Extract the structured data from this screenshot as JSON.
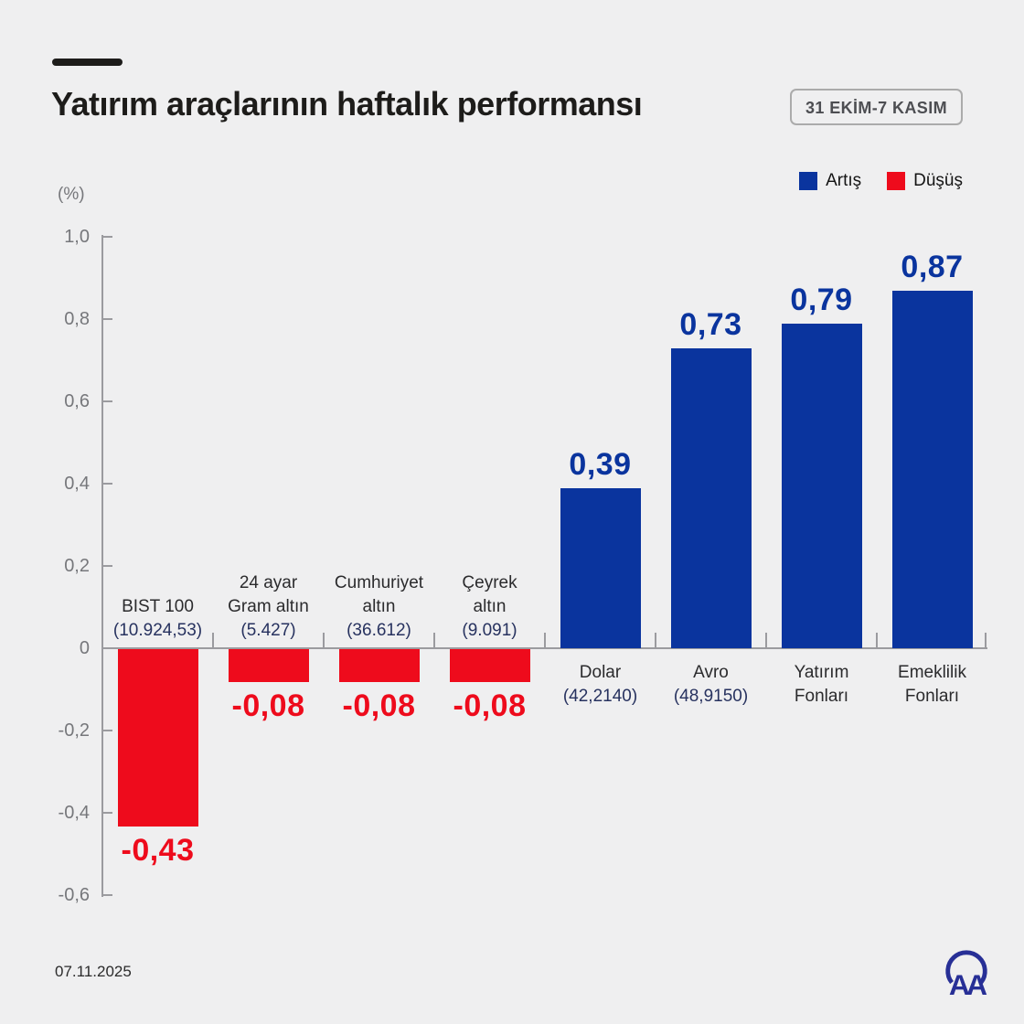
{
  "header": {
    "title": "Yatırım araçlarının haftalık performansı",
    "period_badge": "31 EKİM-7 KASIM"
  },
  "legend": [
    {
      "label": "Artış",
      "color": "#0a349e"
    },
    {
      "label": "Düşüş",
      "color": "#ee0b1c"
    }
  ],
  "footer": {
    "date": "07.11.2025",
    "logo": "AA"
  },
  "chart_data": {
    "type": "bar",
    "title": "Yatırım araçlarının haftalık performansı",
    "period": "31 EKİM-7 KASIM",
    "ylabel": "(%)",
    "ylim": [
      -0.6,
      1.0
    ],
    "yticks": [
      1.0,
      0.8,
      0.6,
      0.4,
      0.2,
      0,
      -0.2,
      -0.4,
      -0.6
    ],
    "ytick_labels": [
      "1,0",
      "0,8",
      "0,6",
      "0,4",
      "0,2",
      "0",
      "-0,2",
      "-0,4",
      "-0,6"
    ],
    "grid": false,
    "legend_position": "top-right",
    "colors": {
      "increase": "#0a349e",
      "decrease": "#ee0b1c"
    },
    "categories": [
      {
        "name_lines": [
          "BIST 100"
        ],
        "detail": "(10.924,53)",
        "value": -0.43,
        "value_label": "-0,43",
        "direction": "decrease"
      },
      {
        "name_lines": [
          "24 ayar",
          "Gram altın"
        ],
        "detail": "(5.427)",
        "value": -0.08,
        "value_label": "-0,08",
        "direction": "decrease"
      },
      {
        "name_lines": [
          "Cumhuriyet",
          "altın"
        ],
        "detail": "(36.612)",
        "value": -0.08,
        "value_label": "-0,08",
        "direction": "decrease"
      },
      {
        "name_lines": [
          "Çeyrek",
          "altın"
        ],
        "detail": "(9.091)",
        "value": -0.08,
        "value_label": "-0,08",
        "direction": "decrease"
      },
      {
        "name_lines": [
          "Dolar"
        ],
        "detail": "(42,2140)",
        "value": 0.39,
        "value_label": "0,39",
        "direction": "increase"
      },
      {
        "name_lines": [
          "Avro"
        ],
        "detail": "(48,9150)",
        "value": 0.73,
        "value_label": "0,73",
        "direction": "increase"
      },
      {
        "name_lines": [
          "Yatırım",
          "Fonları"
        ],
        "detail": "",
        "value": 0.79,
        "value_label": "0,79",
        "direction": "increase"
      },
      {
        "name_lines": [
          "Emeklilik",
          "Fonları"
        ],
        "detail": "",
        "value": 0.87,
        "value_label": "0,87",
        "direction": "increase"
      }
    ]
  }
}
